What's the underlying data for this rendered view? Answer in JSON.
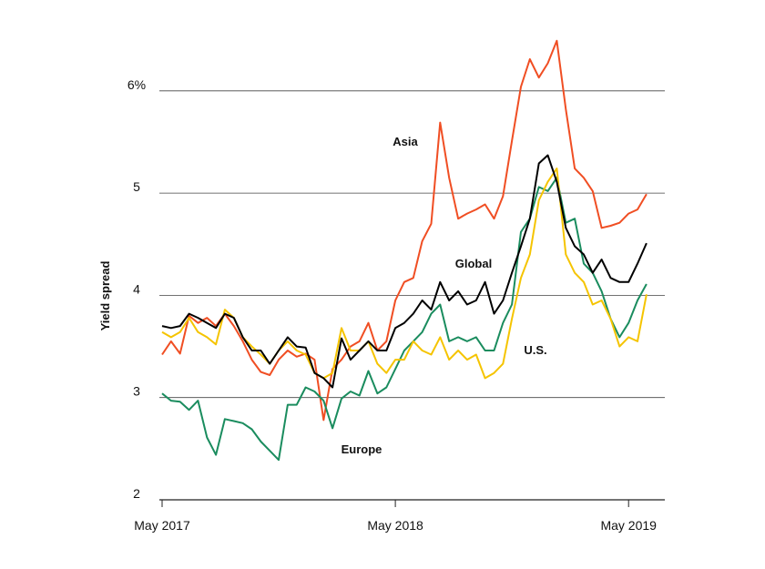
{
  "chart_data": {
    "type": "line",
    "y_label": "Yield spread",
    "categories": [
      "May 2017",
      null,
      null,
      null,
      null,
      null,
      null,
      null,
      null,
      null,
      null,
      null,
      null,
      null,
      null,
      null,
      null,
      null,
      null,
      null,
      null,
      null,
      null,
      null,
      null,
      null,
      "May 2018",
      null,
      null,
      null,
      null,
      null,
      null,
      null,
      null,
      null,
      null,
      null,
      null,
      null,
      null,
      null,
      null,
      null,
      null,
      null,
      null,
      null,
      null,
      null,
      null,
      null,
      "May 2019",
      null,
      null
    ],
    "ylim": [
      2,
      6.5
    ],
    "yticks": [
      2,
      3,
      4,
      5,
      {
        "value": 6,
        "label": "6%"
      }
    ],
    "grid": true,
    "series": [
      {
        "name": "Asia",
        "color": "#f04e23",
        "values": [
          3.42,
          3.55,
          3.43,
          3.8,
          3.73,
          3.78,
          3.7,
          3.82,
          3.7,
          3.55,
          3.37,
          3.25,
          3.22,
          3.37,
          3.46,
          3.4,
          3.43,
          3.37,
          2.78,
          3.28,
          3.37,
          3.5,
          3.55,
          3.73,
          3.46,
          3.55,
          3.95,
          4.13,
          4.17,
          4.53,
          4.7,
          5.69,
          5.15,
          4.75,
          4.8,
          4.84,
          4.89,
          4.75,
          4.97,
          5.51,
          6.04,
          6.31,
          6.13,
          6.27,
          6.49,
          5.82,
          5.24,
          5.15,
          5.02,
          4.66,
          4.68,
          4.71,
          4.8,
          4.84,
          4.99
        ]
      },
      {
        "name": "Europe",
        "color": "#1a8c5e",
        "values": [
          3.04,
          2.97,
          2.96,
          2.88,
          2.97,
          2.61,
          2.44,
          2.79,
          2.77,
          2.75,
          2.69,
          2.57,
          2.48,
          2.39,
          2.93,
          2.93,
          3.1,
          3.06,
          2.97,
          2.7,
          2.99,
          3.06,
          3.02,
          3.26,
          3.04,
          3.1,
          3.28,
          3.46,
          3.55,
          3.64,
          3.82,
          3.91,
          3.55,
          3.59,
          3.55,
          3.59,
          3.46,
          3.46,
          3.73,
          3.91,
          4.62,
          4.75,
          5.06,
          5.02,
          5.15,
          4.71,
          4.75,
          4.31,
          4.22,
          4.04,
          3.77,
          3.59,
          3.73,
          3.95,
          4.11
        ]
      },
      {
        "name": "U.S.",
        "color": "#f5c400",
        "values": [
          3.64,
          3.59,
          3.64,
          3.78,
          3.64,
          3.59,
          3.52,
          3.86,
          3.78,
          3.59,
          3.5,
          3.42,
          3.33,
          3.46,
          3.55,
          3.46,
          3.42,
          3.24,
          3.19,
          3.24,
          3.68,
          3.46,
          3.46,
          3.55,
          3.33,
          3.24,
          3.37,
          3.37,
          3.55,
          3.46,
          3.42,
          3.59,
          3.37,
          3.46,
          3.37,
          3.42,
          3.19,
          3.24,
          3.33,
          3.77,
          4.17,
          4.4,
          4.93,
          5.11,
          5.24,
          4.4,
          4.22,
          4.13,
          3.91,
          3.95,
          3.77,
          3.5,
          3.59,
          3.55,
          4.01
        ]
      },
      {
        "name": "Global",
        "color": "#000000",
        "values": [
          3.7,
          3.68,
          3.7,
          3.82,
          3.78,
          3.73,
          3.68,
          3.82,
          3.78,
          3.59,
          3.46,
          3.46,
          3.33,
          3.46,
          3.59,
          3.5,
          3.49,
          3.24,
          3.19,
          3.1,
          3.58,
          3.37,
          3.46,
          3.55,
          3.46,
          3.46,
          3.68,
          3.73,
          3.82,
          3.95,
          3.86,
          4.13,
          3.95,
          4.04,
          3.91,
          3.95,
          4.13,
          3.82,
          3.95,
          4.22,
          4.48,
          4.75,
          5.29,
          5.37,
          5.11,
          4.66,
          4.48,
          4.4,
          4.22,
          4.35,
          4.17,
          4.13,
          4.13,
          4.31,
          4.51
        ]
      }
    ]
  }
}
